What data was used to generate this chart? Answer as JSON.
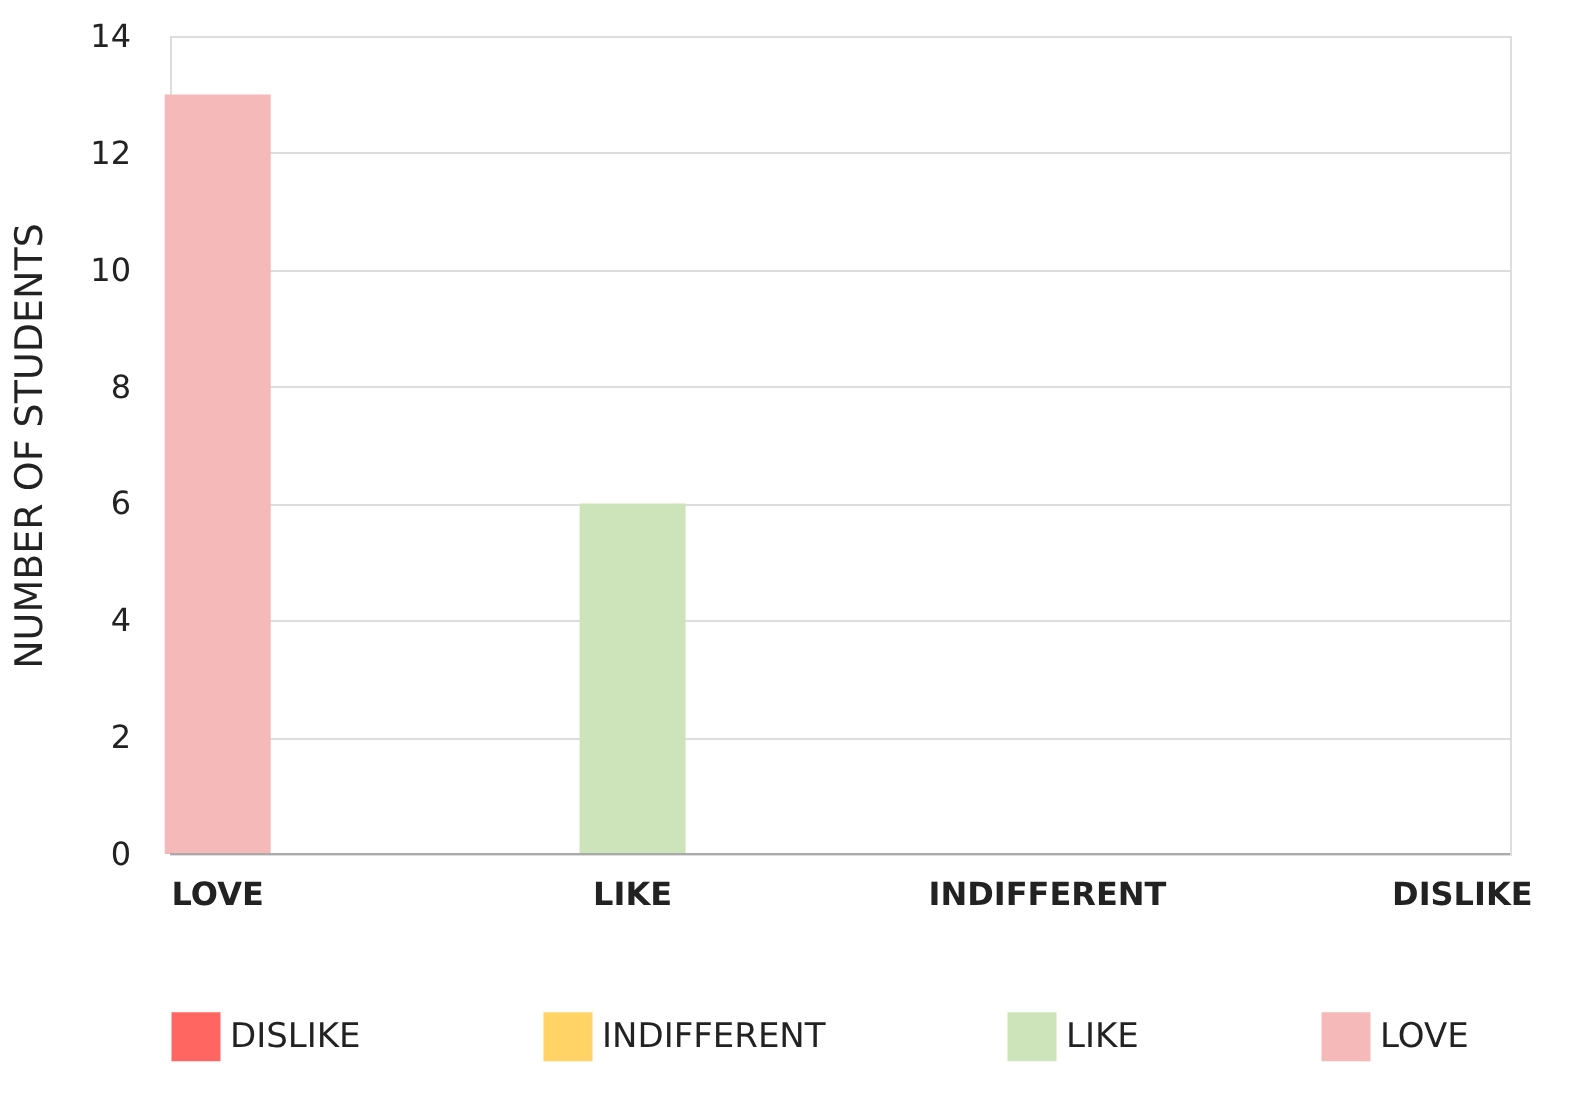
{
  "chart_data": {
    "type": "bar",
    "ylabel": "NUMBER OF STUDENTS",
    "categories": [
      "LOVE",
      "LIKE",
      "INDIFFERENT",
      "DISLIKE"
    ],
    "series": [
      {
        "name": "DISLIKE",
        "color": "#ff6661",
        "values": [
          null,
          null,
          null,
          0
        ]
      },
      {
        "name": "INDIFFERENT",
        "color": "#ffd365",
        "values": [
          null,
          null,
          0,
          null
        ]
      },
      {
        "name": "LIKE",
        "color": "#cde3b9",
        "values": [
          null,
          6,
          null,
          null
        ]
      },
      {
        "name": "LOVE",
        "color": "#f4b9b8",
        "values": [
          13,
          null,
          null,
          null
        ]
      }
    ],
    "ylim": [
      0,
      14
    ],
    "yticks": [
      0,
      2,
      4,
      6,
      8,
      10,
      12,
      14
    ],
    "grid": "y",
    "legend": "bottom"
  }
}
